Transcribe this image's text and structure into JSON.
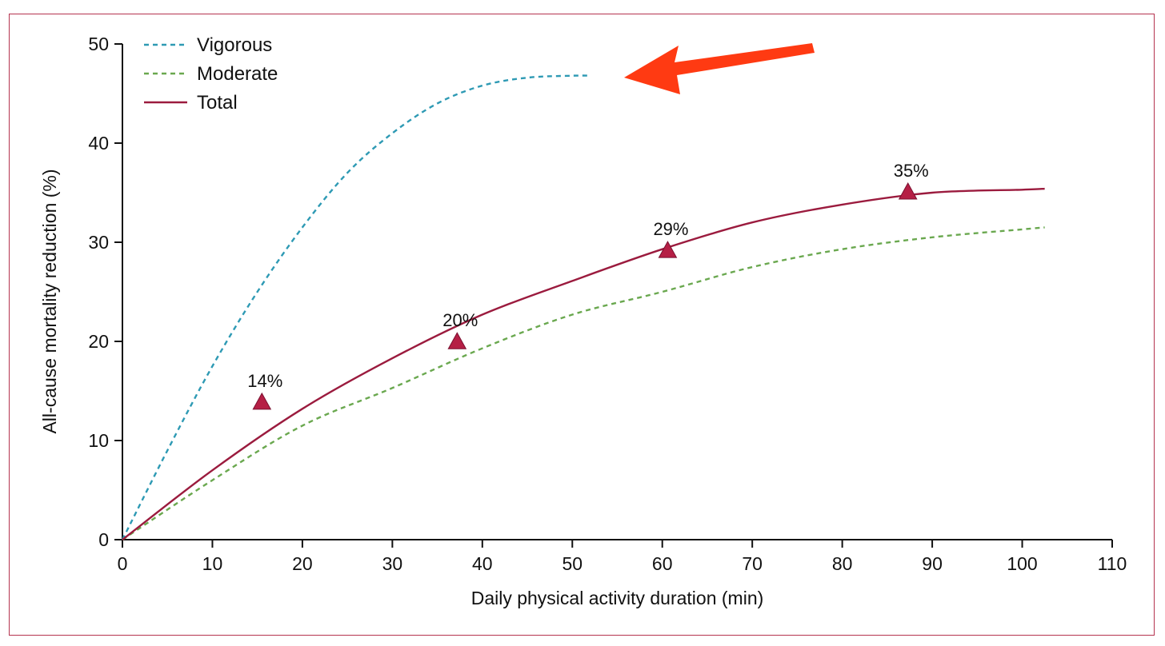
{
  "chart_data": {
    "type": "line",
    "title": "",
    "xlabel": "Daily physical activity duration (min)",
    "ylabel": "All-cause mortality reduction (%)",
    "xlim": [
      0,
      110
    ],
    "ylim": [
      0,
      50
    ],
    "xticks": [
      0,
      10,
      20,
      30,
      40,
      50,
      60,
      70,
      80,
      90,
      100,
      110
    ],
    "yticks": [
      0,
      10,
      20,
      30,
      40,
      50
    ],
    "xtick_labels": [
      "0",
      "10",
      "20",
      "30",
      "40",
      "50",
      "60",
      "70",
      "80",
      "90",
      "100",
      "110"
    ],
    "ytick_labels": [
      "0",
      "10",
      "20",
      "30",
      "40",
      "50"
    ],
    "grid": false,
    "legend_position": "top-left",
    "series": [
      {
        "name": "Vigorous",
        "style": "dashed",
        "color": "#2e9ab4",
        "x": [
          0,
          5,
          10,
          15,
          20,
          25,
          30,
          35,
          40,
          45,
          50,
          52
        ],
        "y": [
          0,
          9.0,
          17.5,
          25.0,
          31.5,
          37.0,
          41.0,
          44.0,
          45.8,
          46.6,
          46.8,
          46.8
        ]
      },
      {
        "name": "Moderate",
        "style": "dashed",
        "color": "#6aa84f",
        "x": [
          0,
          10,
          20,
          30,
          40,
          50,
          60,
          70,
          80,
          90,
          100,
          102.5
        ],
        "y": [
          0,
          6.0,
          11.5,
          15.3,
          19.3,
          22.7,
          25.0,
          27.5,
          29.3,
          30.5,
          31.3,
          31.5
        ]
      },
      {
        "name": "Total",
        "style": "solid",
        "color": "#9b1b3e",
        "x": [
          0,
          10,
          20,
          30,
          40,
          50,
          60,
          70,
          80,
          90,
          100,
          102.5
        ],
        "y": [
          0,
          7.0,
          13.2,
          18.3,
          22.7,
          26.1,
          29.3,
          32.0,
          33.8,
          35.0,
          35.3,
          35.4
        ]
      }
    ],
    "markers": [
      {
        "x": 15.5,
        "y": 13.8,
        "label": "14%"
      },
      {
        "x": 37.2,
        "y": 19.9,
        "label": "20%"
      },
      {
        "x": 60.6,
        "y": 29.1,
        "label": "29%"
      },
      {
        "x": 87.3,
        "y": 35.0,
        "label": "35%"
      }
    ],
    "marker_color": "#b51f45",
    "annotations": [
      {
        "type": "arrow",
        "color": "#ff3a12",
        "points_to_series": "Vigorous",
        "direction": "pointing left"
      }
    ]
  }
}
